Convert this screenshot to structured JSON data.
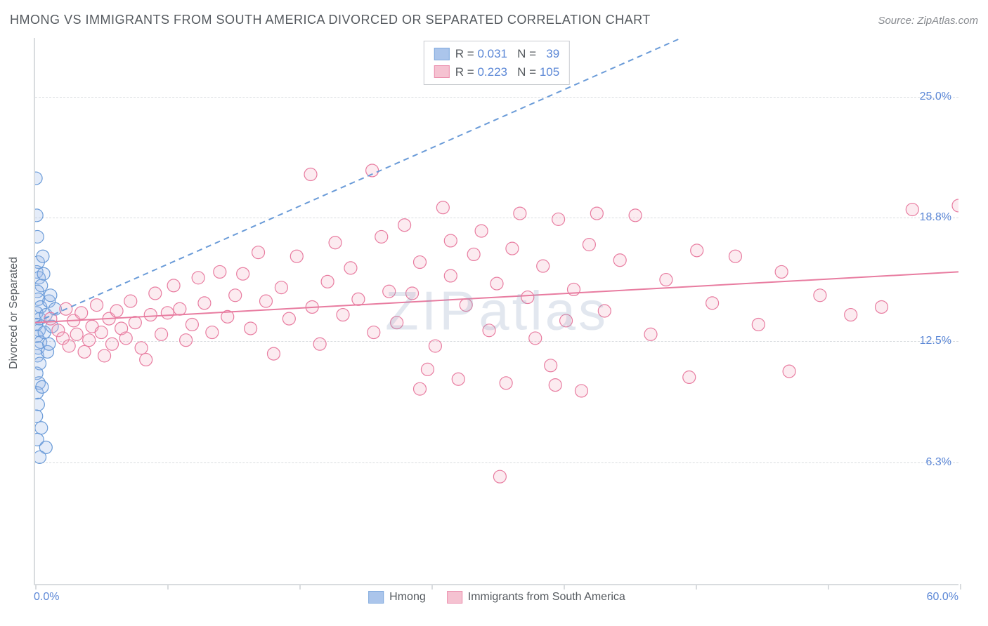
{
  "title": "HMONG VS IMMIGRANTS FROM SOUTH AMERICA DIVORCED OR SEPARATED CORRELATION CHART",
  "source": "Source: ZipAtlas.com",
  "watermark": "ZIPatlas",
  "y_axis_label": "Divorced or Separated",
  "chart": {
    "type": "scatter",
    "xlim": [
      0,
      60
    ],
    "ylim": [
      0,
      28
    ],
    "x_ticks": [
      0,
      8.57,
      17.14,
      25.71,
      34.29,
      42.86,
      51.43,
      60
    ],
    "y_gridlines": [
      6.3,
      12.5,
      18.8,
      25.0
    ],
    "y_tick_labels": [
      "6.3%",
      "12.5%",
      "18.8%",
      "25.0%"
    ],
    "x_min_label": "0.0%",
    "x_max_label": "60.0%",
    "grid_color": "#d9dcdf",
    "background_color": "#ffffff",
    "marker_radius": 9,
    "marker_stroke_width": 1.2,
    "marker_fill_opacity": 0.28,
    "trend_line_width": 2,
    "series": [
      {
        "name": "Hmong",
        "fill": "#9dbce8",
        "stroke": "#6a9bd8",
        "R": "0.031",
        "N": "39",
        "trend": {
          "x1": 0,
          "y1": 13.4,
          "x2": 42,
          "y2": 28,
          "dashed": true
        },
        "points": [
          [
            0.05,
            20.8
          ],
          [
            0.1,
            18.9
          ],
          [
            0.15,
            17.8
          ],
          [
            0.2,
            16.5
          ],
          [
            0.1,
            16.0
          ],
          [
            0.25,
            15.7
          ],
          [
            0.4,
            15.3
          ],
          [
            0.15,
            15.0
          ],
          [
            0.2,
            14.6
          ],
          [
            0.35,
            14.2
          ],
          [
            0.1,
            13.9
          ],
          [
            0.3,
            13.6
          ],
          [
            0.08,
            13.3
          ],
          [
            0.25,
            13.0
          ],
          [
            0.12,
            12.7
          ],
          [
            0.35,
            12.4
          ],
          [
            0.2,
            12.1
          ],
          [
            0.15,
            11.7
          ],
          [
            0.3,
            11.3
          ],
          [
            0.1,
            10.8
          ],
          [
            0.25,
            10.3
          ],
          [
            0.12,
            9.8
          ],
          [
            0.2,
            9.2
          ],
          [
            0.08,
            8.6
          ],
          [
            0.4,
            8.0
          ],
          [
            0.15,
            7.4
          ],
          [
            0.7,
            7.0
          ],
          [
            0.3,
            6.5
          ],
          [
            0.55,
            15.9
          ],
          [
            0.9,
            14.5
          ],
          [
            0.7,
            13.8
          ],
          [
            1.0,
            14.8
          ],
          [
            0.6,
            12.9
          ],
          [
            0.8,
            11.9
          ],
          [
            1.1,
            13.2
          ],
          [
            0.45,
            10.1
          ],
          [
            0.5,
            16.8
          ],
          [
            1.3,
            14.1
          ],
          [
            0.9,
            12.3
          ]
        ]
      },
      {
        "name": "Immigrants from South America",
        "fill": "#f4b8ca",
        "stroke": "#e87ca0",
        "R": "0.223",
        "N": "105",
        "trend": {
          "x1": 0,
          "y1": 13.4,
          "x2": 60,
          "y2": 16.0,
          "dashed": false
        },
        "points": [
          [
            1.0,
            13.6
          ],
          [
            1.5,
            13.0
          ],
          [
            1.8,
            12.6
          ],
          [
            2.0,
            14.1
          ],
          [
            2.2,
            12.2
          ],
          [
            2.5,
            13.5
          ],
          [
            2.7,
            12.8
          ],
          [
            3.0,
            13.9
          ],
          [
            3.2,
            11.9
          ],
          [
            3.5,
            12.5
          ],
          [
            3.7,
            13.2
          ],
          [
            4.0,
            14.3
          ],
          [
            4.3,
            12.9
          ],
          [
            4.5,
            11.7
          ],
          [
            4.8,
            13.6
          ],
          [
            5.0,
            12.3
          ],
          [
            5.3,
            14.0
          ],
          [
            5.6,
            13.1
          ],
          [
            5.9,
            12.6
          ],
          [
            6.2,
            14.5
          ],
          [
            6.5,
            13.4
          ],
          [
            6.9,
            12.1
          ],
          [
            7.2,
            11.5
          ],
          [
            7.5,
            13.8
          ],
          [
            7.8,
            14.9
          ],
          [
            8.2,
            12.8
          ],
          [
            8.6,
            13.9
          ],
          [
            9.0,
            15.3
          ],
          [
            9.4,
            14.1
          ],
          [
            9.8,
            12.5
          ],
          [
            10.2,
            13.3
          ],
          [
            10.6,
            15.7
          ],
          [
            11.0,
            14.4
          ],
          [
            11.5,
            12.9
          ],
          [
            12.0,
            16.0
          ],
          [
            12.5,
            13.7
          ],
          [
            13.0,
            14.8
          ],
          [
            13.5,
            15.9
          ],
          [
            14.0,
            13.1
          ],
          [
            14.5,
            17.0
          ],
          [
            15.0,
            14.5
          ],
          [
            15.5,
            11.8
          ],
          [
            16.0,
            15.2
          ],
          [
            16.5,
            13.6
          ],
          [
            17.0,
            16.8
          ],
          [
            17.9,
            21.0
          ],
          [
            18.0,
            14.2
          ],
          [
            18.5,
            12.3
          ],
          [
            19.0,
            15.5
          ],
          [
            19.5,
            17.5
          ],
          [
            20.0,
            13.8
          ],
          [
            20.5,
            16.2
          ],
          [
            21.0,
            14.6
          ],
          [
            21.9,
            21.2
          ],
          [
            22.0,
            12.9
          ],
          [
            22.5,
            17.8
          ],
          [
            23.0,
            15.0
          ],
          [
            23.5,
            13.4
          ],
          [
            24.0,
            18.4
          ],
          [
            24.5,
            14.9
          ],
          [
            25.0,
            16.5
          ],
          [
            25.5,
            11.0
          ],
          [
            25.0,
            10.0
          ],
          [
            26.0,
            12.2
          ],
          [
            26.5,
            19.3
          ],
          [
            27.0,
            17.6
          ],
          [
            27.0,
            15.8
          ],
          [
            27.5,
            10.5
          ],
          [
            28.0,
            14.3
          ],
          [
            28.5,
            16.9
          ],
          [
            29.0,
            18.1
          ],
          [
            29.5,
            13.0
          ],
          [
            30.0,
            15.4
          ],
          [
            30.2,
            5.5
          ],
          [
            30.6,
            10.3
          ],
          [
            31.0,
            17.2
          ],
          [
            31.5,
            19.0
          ],
          [
            32.0,
            14.7
          ],
          [
            32.5,
            12.6
          ],
          [
            33.0,
            16.3
          ],
          [
            33.5,
            11.2
          ],
          [
            33.8,
            10.2
          ],
          [
            34.0,
            18.7
          ],
          [
            34.5,
            13.5
          ],
          [
            35.0,
            15.1
          ],
          [
            35.5,
            9.9
          ],
          [
            36.0,
            17.4
          ],
          [
            36.5,
            19.0
          ],
          [
            37.0,
            14.0
          ],
          [
            38.0,
            16.6
          ],
          [
            39.0,
            18.9
          ],
          [
            40.0,
            12.8
          ],
          [
            41.0,
            15.6
          ],
          [
            42.5,
            10.6
          ],
          [
            43.0,
            17.1
          ],
          [
            44.0,
            14.4
          ],
          [
            45.5,
            16.8
          ],
          [
            47.0,
            13.3
          ],
          [
            48.5,
            16.0
          ],
          [
            49.0,
            10.9
          ],
          [
            51.0,
            14.8
          ],
          [
            53.0,
            13.8
          ],
          [
            55.0,
            14.2
          ],
          [
            57.0,
            19.2
          ],
          [
            60.0,
            19.4
          ]
        ]
      }
    ]
  },
  "legend_labels": {
    "R": "R = ",
    "N": "N = "
  },
  "colors": {
    "title": "#555a5f",
    "axis_value": "#5b87d6",
    "source": "#888b90"
  }
}
